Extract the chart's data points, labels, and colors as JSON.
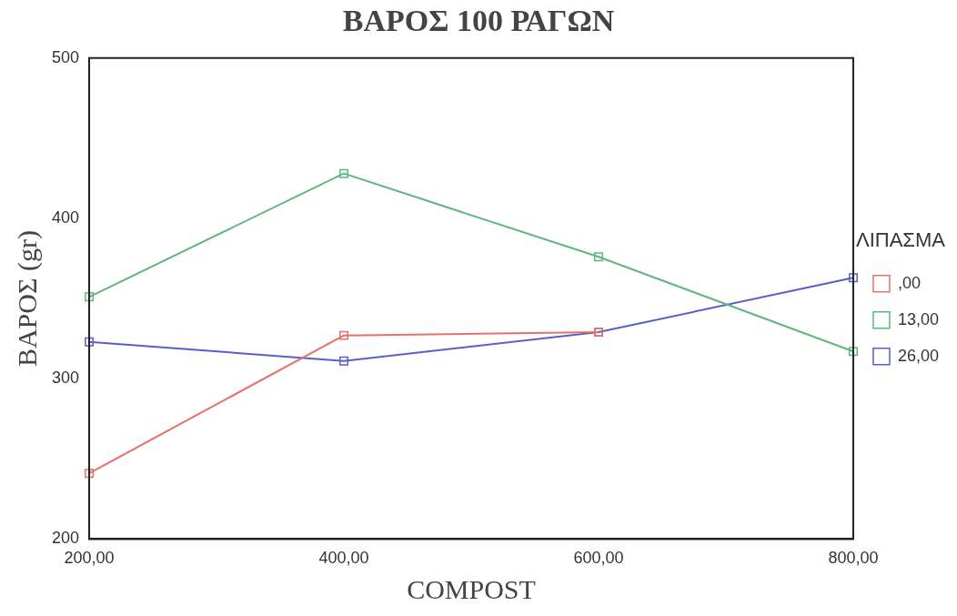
{
  "chart_data": {
    "type": "line",
    "title": "ΒΑΡΟΣ 100 ΡΑΓΩΝ",
    "xlabel": "COMPOST",
    "ylabel": "ΒΑΡΟΣ (gr)",
    "legend_title": "ΛΙΠΑΣΜΑ",
    "categories": [
      "200,00",
      "400,00",
      "600,00",
      "800,00"
    ],
    "series": [
      {
        "name": ",00",
        "color": "#e8706a",
        "values": [
          241,
          327,
          329,
          null
        ]
      },
      {
        "name": "13,00",
        "color": "#5cb87a",
        "values": [
          351,
          428,
          376,
          317
        ]
      },
      {
        "name": "26,00",
        "color": "#5a5ec8",
        "values": [
          323,
          311,
          329,
          363
        ]
      }
    ],
    "ylim": [
      200,
      500
    ],
    "yticks": [
      200,
      300,
      400,
      500
    ],
    "grid": false,
    "legend": "right",
    "marker": "square",
    "line_style": "solid"
  }
}
